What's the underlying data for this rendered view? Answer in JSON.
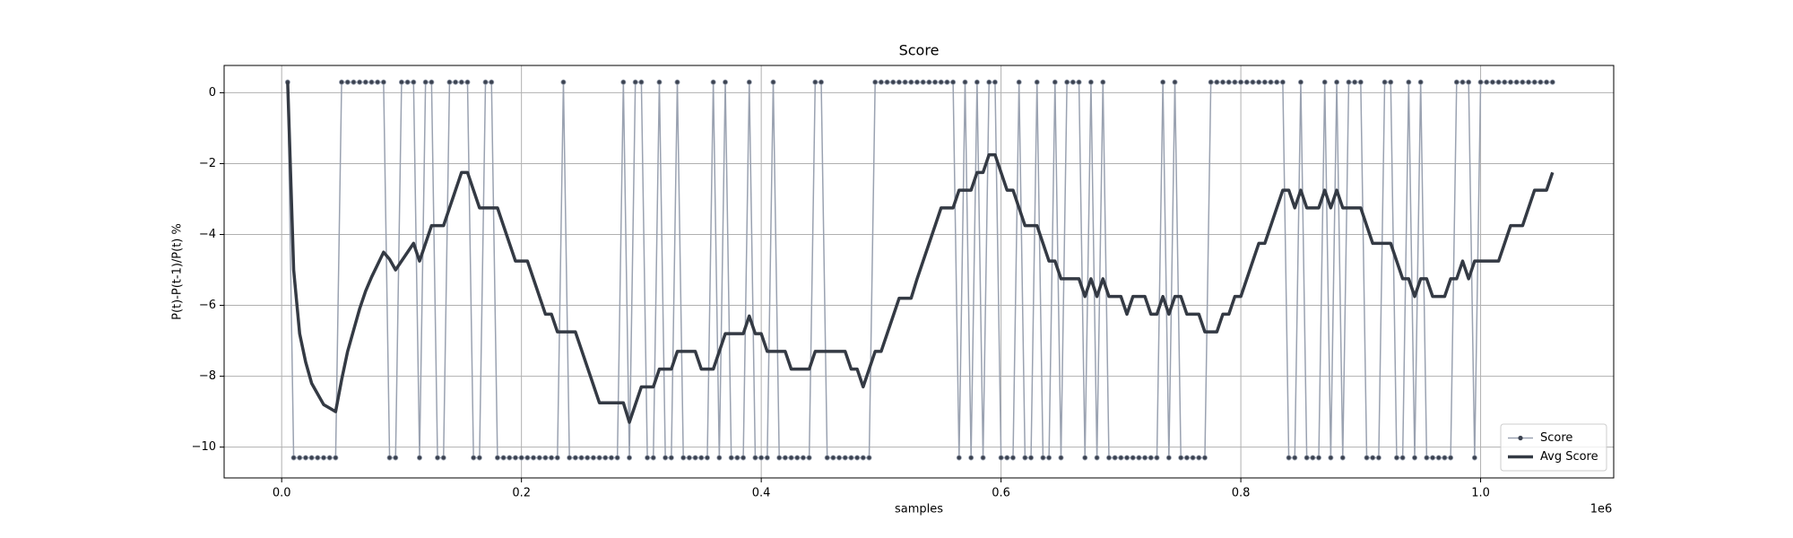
{
  "chart_data": {
    "type": "line",
    "title": "Score",
    "x_label": "samples",
    "y_label": "P(t)-P(t-1)/P(t) %",
    "x_offset_label": "1e6",
    "x": [
      5000,
      10000,
      15000,
      20000,
      25000,
      30000,
      35000,
      40000,
      45000,
      50000,
      55000,
      60000,
      65000,
      70000,
      75000,
      80000,
      85000,
      90000,
      95000,
      100000,
      105000,
      110000,
      115000,
      120000,
      125000,
      130000,
      135000,
      140000,
      145000,
      150000,
      155000,
      160000,
      165000,
      170000,
      175000,
      180000,
      185000,
      190000,
      195000,
      200000,
      205000,
      210000,
      215000,
      220000,
      225000,
      230000,
      235000,
      240000,
      245000,
      250000,
      255000,
      260000,
      265000,
      270000,
      275000,
      280000,
      285000,
      290000,
      295000,
      300000,
      305000,
      310000,
      315000,
      320000,
      325000,
      330000,
      335000,
      340000,
      345000,
      350000,
      355000,
      360000,
      365000,
      370000,
      375000,
      380000,
      385000,
      390000,
      395000,
      400000,
      405000,
      410000,
      415000,
      420000,
      425000,
      430000,
      435000,
      440000,
      445000,
      450000,
      455000,
      460000,
      465000,
      470000,
      475000,
      480000,
      485000,
      490000,
      495000,
      500000,
      505000,
      510000,
      515000,
      520000,
      525000,
      530000,
      535000,
      540000,
      545000,
      550000,
      555000,
      560000,
      565000,
      570000,
      575000,
      580000,
      585000,
      590000,
      595000,
      600000,
      605000,
      610000,
      615000,
      620000,
      625000,
      630000,
      635000,
      640000,
      645000,
      650000,
      655000,
      660000,
      665000,
      670000,
      675000,
      680000,
      685000,
      690000,
      695000,
      700000,
      705000,
      710000,
      715000,
      720000,
      725000,
      730000,
      735000,
      740000,
      745000,
      750000,
      755000,
      760000,
      765000,
      770000,
      775000,
      780000,
      785000,
      790000,
      795000,
      800000,
      805000,
      810000,
      815000,
      820000,
      825000,
      830000,
      835000,
      840000,
      845000,
      850000,
      855000,
      860000,
      865000,
      870000,
      875000,
      880000,
      885000,
      890000,
      895000,
      900000,
      905000,
      910000,
      915000,
      920000,
      925000,
      930000,
      935000,
      940000,
      945000,
      950000,
      955000,
      960000,
      965000,
      970000,
      975000,
      980000,
      985000,
      990000,
      995000,
      1000000,
      1005000,
      1010000,
      1015000,
      1020000,
      1025000,
      1030000,
      1035000,
      1040000,
      1045000,
      1050000,
      1055000,
      1060000
    ],
    "series": [
      {
        "name": "Score",
        "color": "#9aa2b1",
        "marker_color": "#3b4250",
        "marker": true,
        "linewidth": 1.5,
        "values": [
          0.3,
          -10.3,
          -10.3,
          -10.3,
          -10.3,
          -10.3,
          -10.3,
          -10.3,
          -10.3,
          0.3,
          0.3,
          0.3,
          0.3,
          0.3,
          0.3,
          0.3,
          0.3,
          -10.3,
          -10.3,
          0.3,
          0.3,
          0.3,
          -10.3,
          0.3,
          0.3,
          -10.3,
          -10.3,
          0.3,
          0.3,
          0.3,
          0.3,
          -10.3,
          -10.3,
          0.3,
          0.3,
          -10.3,
          -10.3,
          -10.3,
          -10.3,
          -10.3,
          -10.3,
          -10.3,
          -10.3,
          -10.3,
          -10.3,
          -10.3,
          0.3,
          -10.3,
          -10.3,
          -10.3,
          -10.3,
          -10.3,
          -10.3,
          -10.3,
          -10.3,
          -10.3,
          0.3,
          -10.3,
          0.3,
          0.3,
          -10.3,
          -10.3,
          0.3,
          -10.3,
          -10.3,
          0.3,
          -10.3,
          -10.3,
          -10.3,
          -10.3,
          -10.3,
          0.3,
          -10.3,
          0.3,
          -10.3,
          -10.3,
          -10.3,
          0.3,
          -10.3,
          -10.3,
          -10.3,
          0.3,
          -10.3,
          -10.3,
          -10.3,
          -10.3,
          -10.3,
          -10.3,
          0.3,
          0.3,
          -10.3,
          -10.3,
          -10.3,
          -10.3,
          -10.3,
          -10.3,
          -10.3,
          -10.3,
          0.3,
          0.3,
          0.3,
          0.3,
          0.3,
          0.3,
          0.3,
          0.3,
          0.3,
          0.3,
          0.3,
          0.3,
          0.3,
          0.3,
          -10.3,
          0.3,
          -10.3,
          0.3,
          -10.3,
          0.3,
          0.3,
          -10.3,
          -10.3,
          -10.3,
          0.3,
          -10.3,
          -10.3,
          0.3,
          -10.3,
          -10.3,
          0.3,
          -10.3,
          0.3,
          0.3,
          0.3,
          -10.3,
          0.3,
          -10.3,
          0.3,
          -10.3,
          -10.3,
          -10.3,
          -10.3,
          -10.3,
          -10.3,
          -10.3,
          -10.3,
          -10.3,
          0.3,
          -10.3,
          0.3,
          -10.3,
          -10.3,
          -10.3,
          -10.3,
          -10.3,
          0.3,
          0.3,
          0.3,
          0.3,
          0.3,
          0.3,
          0.3,
          0.3,
          0.3,
          0.3,
          0.3,
          0.3,
          0.3,
          -10.3,
          -10.3,
          0.3,
          -10.3,
          -10.3,
          -10.3,
          0.3,
          -10.3,
          0.3,
          -10.3,
          0.3,
          0.3,
          0.3,
          -10.3,
          -10.3,
          -10.3,
          0.3,
          0.3,
          -10.3,
          -10.3,
          0.3,
          -10.3,
          0.3,
          -10.3,
          -10.3,
          -10.3,
          -10.3,
          -10.3,
          0.3,
          0.3,
          0.3,
          -10.3,
          0.3,
          0.3,
          0.3,
          0.3,
          0.3,
          0.3,
          0.3,
          0.3,
          0.3,
          0.3,
          0.3,
          0.3,
          0.3
        ]
      },
      {
        "name": "Avg Score",
        "color": "#343a44",
        "marker": false,
        "linewidth": 3.5,
        "values": [
          0.3,
          -5.0,
          -6.8,
          -7.6,
          -8.2,
          -8.5,
          -8.8,
          -8.9,
          -9.0,
          -8.1,
          -7.3,
          -6.7,
          -6.1,
          -5.6,
          -5.2,
          -4.85,
          -4.5,
          -4.7,
          -5.0,
          -4.75,
          -4.5,
          -4.25,
          -4.75,
          -4.25,
          -3.75,
          -3.75,
          -3.75,
          -3.25,
          -2.75,
          -2.25,
          -2.25,
          -2.75,
          -3.25,
          -3.25,
          -3.25,
          -3.25,
          -3.75,
          -4.25,
          -4.75,
          -4.75,
          -4.75,
          -5.25,
          -5.75,
          -6.25,
          -6.25,
          -6.75,
          -6.75,
          -6.75,
          -6.75,
          -7.25,
          -7.75,
          -8.25,
          -8.75,
          -8.75,
          -8.75,
          -8.75,
          -8.75,
          -9.3,
          -8.8,
          -8.3,
          -8.3,
          -8.3,
          -7.8,
          -7.8,
          -7.8,
          -7.3,
          -7.3,
          -7.3,
          -7.3,
          -7.8,
          -7.8,
          -7.8,
          -7.3,
          -6.8,
          -6.8,
          -6.8,
          -6.8,
          -6.3,
          -6.8,
          -6.8,
          -7.3,
          -7.3,
          -7.3,
          -7.3,
          -7.8,
          -7.8,
          -7.8,
          -7.8,
          -7.3,
          -7.3,
          -7.3,
          -7.3,
          -7.3,
          -7.3,
          -7.8,
          -7.8,
          -8.3,
          -7.8,
          -7.3,
          -7.3,
          -6.8,
          -6.3,
          -5.8,
          -5.8,
          -5.8,
          -5.25,
          -4.75,
          -4.25,
          -3.75,
          -3.25,
          -3.25,
          -3.25,
          -2.75,
          -2.75,
          -2.75,
          -2.25,
          -2.25,
          -1.75,
          -1.75,
          -2.25,
          -2.75,
          -2.75,
          -3.25,
          -3.75,
          -3.75,
          -3.75,
          -4.25,
          -4.75,
          -4.75,
          -5.25,
          -5.25,
          -5.25,
          -5.25,
          -5.75,
          -5.25,
          -5.75,
          -5.25,
          -5.75,
          -5.75,
          -5.75,
          -6.25,
          -5.75,
          -5.75,
          -5.75,
          -6.25,
          -6.25,
          -5.75,
          -6.25,
          -5.75,
          -5.75,
          -6.25,
          -6.25,
          -6.25,
          -6.75,
          -6.75,
          -6.75,
          -6.25,
          -6.25,
          -5.75,
          -5.75,
          -5.25,
          -4.75,
          -4.25,
          -4.25,
          -3.75,
          -3.25,
          -2.75,
          -2.75,
          -3.25,
          -2.75,
          -3.25,
          -3.25,
          -3.25,
          -2.75,
          -3.25,
          -2.75,
          -3.25,
          -3.25,
          -3.25,
          -3.25,
          -3.75,
          -4.25,
          -4.25,
          -4.25,
          -4.25,
          -4.75,
          -5.25,
          -5.25,
          -5.75,
          -5.25,
          -5.25,
          -5.75,
          -5.75,
          -5.75,
          -5.25,
          -5.25,
          -4.75,
          -5.25,
          -4.75,
          -4.75,
          -4.75,
          -4.75,
          -4.75,
          -4.25,
          -3.75,
          -3.75,
          -3.75,
          -3.25,
          -2.75,
          -2.75,
          -2.75,
          -2.25
        ]
      }
    ],
    "xlim": [
      -48000,
      1111000
    ],
    "xticks": [
      {
        "value": 0,
        "label": "0.0"
      },
      {
        "value": 200000,
        "label": "0.2"
      },
      {
        "value": 400000,
        "label": "0.4"
      },
      {
        "value": 600000,
        "label": "0.6"
      },
      {
        "value": 800000,
        "label": "0.8"
      },
      {
        "value": 1000000,
        "label": "1.0"
      }
    ],
    "ylim": [
      -10.87,
      0.77
    ],
    "yticks": [
      {
        "value": -10,
        "label": "−10"
      },
      {
        "value": -8,
        "label": "−8"
      },
      {
        "value": -6,
        "label": "−6"
      },
      {
        "value": -4,
        "label": "−4"
      },
      {
        "value": -2,
        "label": "−2"
      },
      0
    ],
    "grid": true,
    "legend": "lower right"
  }
}
